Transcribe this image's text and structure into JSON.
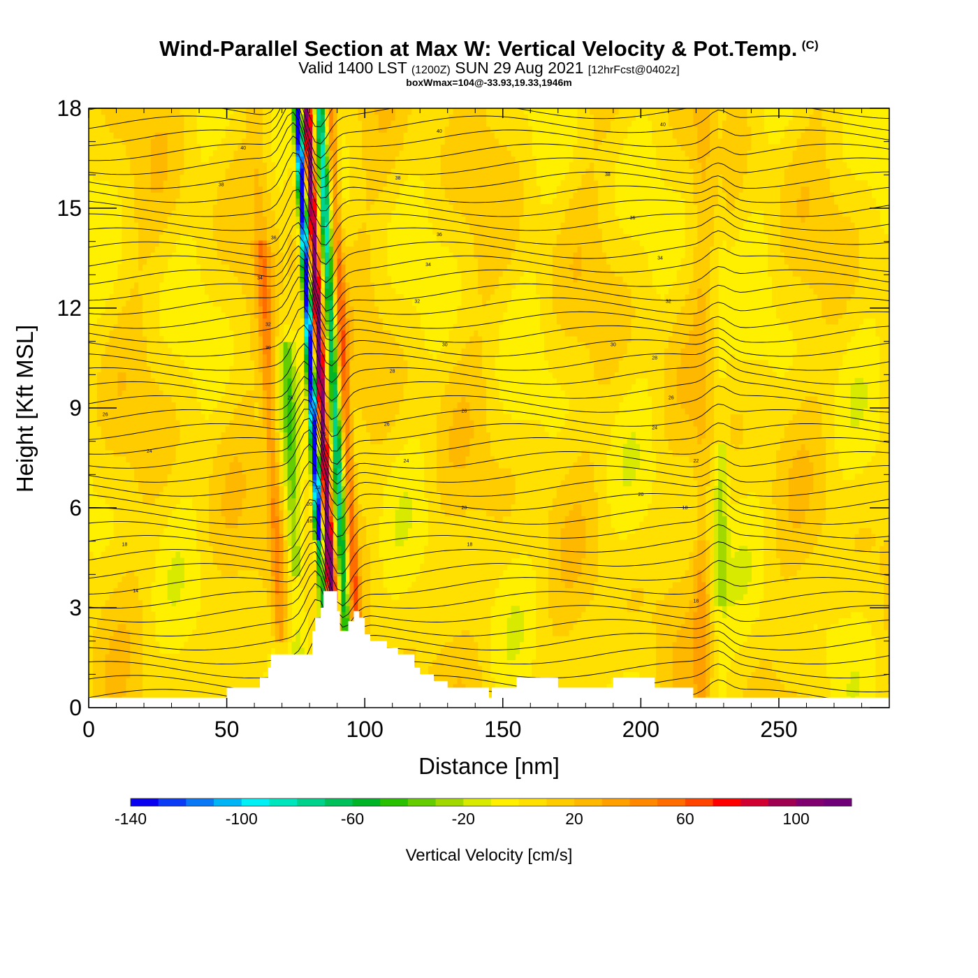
{
  "header": {
    "title": "Wind-Parallel Section at Max W: Vertical Velocity & Pot.Temp.",
    "copyright": "(C)",
    "valid_prefix": "Valid 1400 LST",
    "valid_zulu": "(1200Z)",
    "valid_date": "SUN 29 Aug 2021",
    "forecast": "[12hrFcst@0402z]",
    "boxwmax": "boxWmax=104@-33.93,19.33,1946m"
  },
  "chart_data": {
    "type": "heatmap",
    "xlabel": "Distance [nm]",
    "ylabel": "Height [Kft MSL]",
    "xlim": [
      0,
      290
    ],
    "ylim": [
      0,
      18
    ],
    "x_ticks": [
      0,
      50,
      100,
      150,
      200,
      250
    ],
    "y_ticks": [
      0,
      3,
      6,
      9,
      12,
      15,
      18
    ],
    "shaded_field": "Vertical Velocity [cm/s]",
    "contour_field": "Potential Temperature",
    "wmax": 104,
    "terrain_profile": {
      "x": [
        0,
        48,
        50,
        60,
        62,
        64,
        65,
        66,
        80,
        81,
        82,
        84,
        85,
        88,
        90,
        91,
        92,
        94,
        96,
        98,
        100,
        102,
        106,
        108,
        112,
        118,
        120,
        125,
        130,
        140,
        145,
        146,
        150,
        155,
        160,
        165,
        170,
        175,
        180,
        185,
        190,
        195,
        200,
        205,
        210,
        215,
        218,
        219,
        220,
        230,
        240,
        250,
        260,
        270,
        280,
        290
      ],
      "height": [
        0.3,
        0.3,
        0.6,
        0.6,
        0.9,
        0.9,
        1.2,
        1.6,
        1.6,
        2.3,
        2.7,
        3.0,
        3.5,
        3.5,
        2.9,
        2.3,
        2.3,
        2.6,
        2.9,
        2.7,
        2.2,
        2.0,
        2.0,
        1.8,
        1.6,
        1.2,
        1.0,
        0.8,
        0.6,
        0.6,
        0.3,
        0.6,
        0.6,
        0.9,
        0.9,
        0.9,
        0.6,
        0.6,
        0.6,
        0.6,
        0.9,
        0.9,
        0.9,
        0.6,
        0.6,
        0.6,
        0.6,
        0.3,
        0.3,
        0.3,
        0.3,
        0.3,
        0.3,
        0.3,
        0.3,
        0.3
      ]
    },
    "colorbar": {
      "ticks": [
        "-140",
        "-100",
        "-60",
        "-20",
        "20",
        "60",
        "100"
      ],
      "bins_cm_s": [
        -140,
        -130,
        -120,
        -110,
        -100,
        -90,
        -80,
        -70,
        -60,
        -50,
        -40,
        -30,
        -20,
        -10,
        0,
        10,
        20,
        30,
        40,
        50,
        60,
        70,
        80,
        90,
        100,
        110
      ],
      "colors": [
        "#0a00f0",
        "#0a3cf5",
        "#0a78f5",
        "#00b4f5",
        "#00f0f5",
        "#00e6bc",
        "#00d28c",
        "#00c05a",
        "#00b428",
        "#28c000",
        "#64cc00",
        "#a0d800",
        "#d8ea00",
        "#fff000",
        "#ffe000",
        "#ffcc00",
        "#ffb800",
        "#ffa000",
        "#ff8800",
        "#ff6c00",
        "#ff4400",
        "#ff0000",
        "#d00030",
        "#a00050",
        "#800070",
        "#700078"
      ],
      "title": "Vertical Velocity [cm/s]"
    },
    "contour_labels": [
      {
        "x": 6,
        "y": 8.8,
        "text": "26"
      },
      {
        "x": 22,
        "y": 7.7,
        "text": "24"
      },
      {
        "x": 13,
        "y": 4.9,
        "text": "18"
      },
      {
        "x": 17,
        "y": 3.5,
        "text": "14"
      },
      {
        "x": 56,
        "y": 16.8,
        "text": "40"
      },
      {
        "x": 48,
        "y": 15.7,
        "text": "38"
      },
      {
        "x": 67,
        "y": 14.1,
        "text": "36"
      },
      {
        "x": 62,
        "y": 12.9,
        "text": "34"
      },
      {
        "x": 65,
        "y": 11.5,
        "text": "32"
      },
      {
        "x": 65,
        "y": 10.8,
        "text": "30"
      },
      {
        "x": 73,
        "y": 9.3,
        "text": "28"
      },
      {
        "x": 127,
        "y": 17.3,
        "text": "40"
      },
      {
        "x": 112,
        "y": 15.9,
        "text": "38"
      },
      {
        "x": 127,
        "y": 14.2,
        "text": "36"
      },
      {
        "x": 123,
        "y": 13.3,
        "text": "34"
      },
      {
        "x": 119,
        "y": 12.2,
        "text": "32"
      },
      {
        "x": 129,
        "y": 10.9,
        "text": "30"
      },
      {
        "x": 110,
        "y": 10.1,
        "text": "28"
      },
      {
        "x": 108,
        "y": 8.5,
        "text": "26"
      },
      {
        "x": 115,
        "y": 7.4,
        "text": "24"
      },
      {
        "x": 136,
        "y": 8.9,
        "text": "28"
      },
      {
        "x": 136,
        "y": 6.0,
        "text": "20"
      },
      {
        "x": 138,
        "y": 4.9,
        "text": "18"
      },
      {
        "x": 85,
        "y": 8.2,
        "text": "26"
      },
      {
        "x": 83,
        "y": 6.6,
        "text": "22"
      },
      {
        "x": 80,
        "y": 6.1,
        "text": "20"
      },
      {
        "x": 80,
        "y": 5.6,
        "text": "18"
      },
      {
        "x": 208,
        "y": 17.5,
        "text": "40"
      },
      {
        "x": 188,
        "y": 16.0,
        "text": "38"
      },
      {
        "x": 197,
        "y": 14.7,
        "text": "36"
      },
      {
        "x": 207,
        "y": 13.5,
        "text": "34"
      },
      {
        "x": 210,
        "y": 12.2,
        "text": "32"
      },
      {
        "x": 190,
        "y": 10.9,
        "text": "30"
      },
      {
        "x": 205,
        "y": 10.5,
        "text": "28"
      },
      {
        "x": 211,
        "y": 9.3,
        "text": "26"
      },
      {
        "x": 205,
        "y": 8.4,
        "text": "24"
      },
      {
        "x": 220,
        "y": 7.4,
        "text": "22"
      },
      {
        "x": 200,
        "y": 6.4,
        "text": "20"
      },
      {
        "x": 216,
        "y": 6.0,
        "text": "18"
      },
      {
        "x": 220,
        "y": 3.2,
        "text": "18"
      }
    ]
  }
}
